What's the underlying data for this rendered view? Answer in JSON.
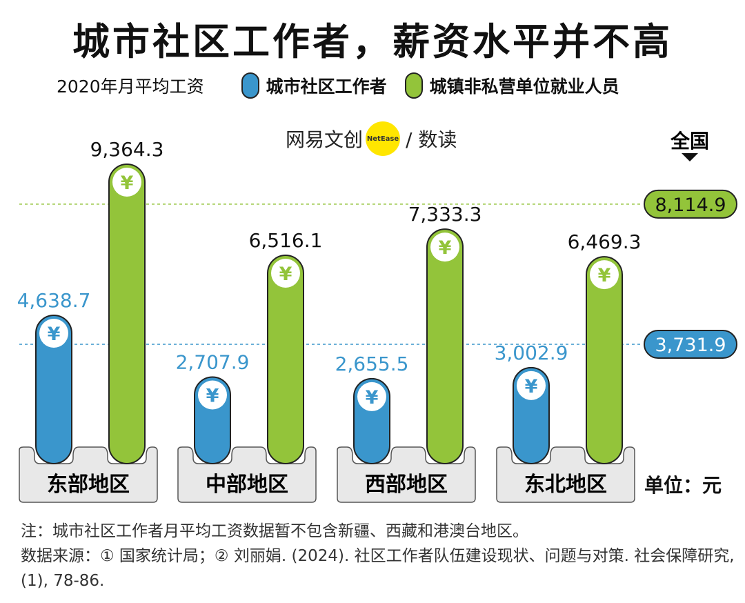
{
  "title": "城市社区工作者，薪资水平并不高",
  "legend": {
    "subtitle": "2020年月平均工资",
    "series1": "城市社区工作者",
    "series2": "城镇非私营单位就业人员"
  },
  "brand": {
    "left": "网易文创",
    "dot": "NetEase",
    "right": "/ 数读"
  },
  "colors": {
    "blue": "#3a96cc",
    "green": "#93c43a",
    "base": "#e8e8e8",
    "blue_text": "#3a96cc"
  },
  "chart_data": {
    "type": "bar",
    "title": "城市社区工作者，薪资水平并不高",
    "ylabel": "单位：元",
    "categories": [
      "东部地区",
      "中部地区",
      "西部地区",
      "东北地区"
    ],
    "series": [
      {
        "name": "城市社区工作者",
        "values": [
          4638.7,
          2707.9,
          2655.5,
          3002.9
        ],
        "labels": [
          "4,638.7",
          "2,707.9",
          "2,655.5",
          "3,002.9"
        ]
      },
      {
        "name": "城镇非私营单位就业人员",
        "values": [
          9364.3,
          6516.1,
          7333.3,
          6469.3
        ],
        "labels": [
          "9,364.3",
          "6,516.1",
          "7,333.3",
          "6,469.3"
        ]
      }
    ],
    "reference_lines": [
      {
        "series": "城镇非私营单位就业人员",
        "value": 8114.9,
        "label": "8,114.9"
      },
      {
        "series": "城市社区工作者",
        "value": 3731.9,
        "label": "3,731.9"
      }
    ],
    "reference_title": "全国",
    "icon_symbol": "¥"
  },
  "unit_label": "单位：元",
  "notes": {
    "line1": "注：城市社区工作者月平均工资数据暂不包含新疆、西藏和港澳台地区。",
    "line2": "数据来源：① 国家统计局；② 刘丽娟. (2024). 社区工作者队伍建设现状、问题与对策. 社会保障研究, (1), 78-86."
  }
}
